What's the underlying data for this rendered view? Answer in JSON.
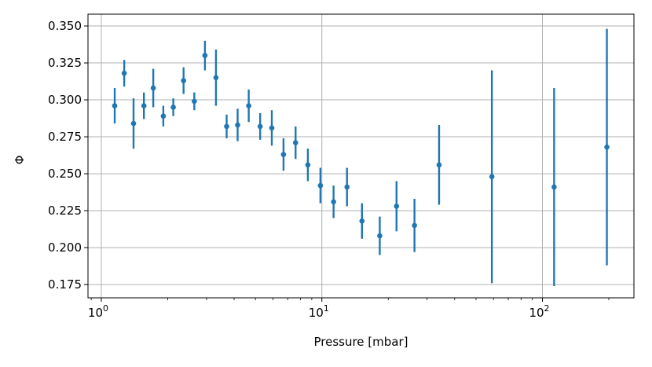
{
  "chart_data": {
    "type": "scatter",
    "xlabel": "Pressure [mbar]",
    "ylabel": "Φ",
    "xscale": "log",
    "xlim": [
      0.87,
      260
    ],
    "ylim": [
      0.166,
      0.358
    ],
    "grid": true,
    "marker_color": "#1f77b4",
    "x_ticks": [
      {
        "value": 1,
        "base": "10",
        "exp": "0"
      },
      {
        "value": 10,
        "base": "10",
        "exp": "1"
      },
      {
        "value": 100,
        "base": "10",
        "exp": "2"
      }
    ],
    "y_ticks": [
      {
        "value": 0.175,
        "label": "0.175"
      },
      {
        "value": 0.2,
        "label": "0.200"
      },
      {
        "value": 0.225,
        "label": "0.225"
      },
      {
        "value": 0.25,
        "label": "0.250"
      },
      {
        "value": 0.275,
        "label": "0.275"
      },
      {
        "value": 0.3,
        "label": "0.300"
      },
      {
        "value": 0.325,
        "label": "0.325"
      },
      {
        "value": 0.35,
        "label": "0.350"
      }
    ],
    "series": [
      {
        "points": [
          {
            "x": 1.15,
            "y": 0.296,
            "yerr": 0.012
          },
          {
            "x": 1.27,
            "y": 0.318,
            "yerr": 0.009
          },
          {
            "x": 1.4,
            "y": 0.284,
            "yerr": 0.017
          },
          {
            "x": 1.56,
            "y": 0.296,
            "yerr": 0.009
          },
          {
            "x": 1.72,
            "y": 0.308,
            "yerr": 0.013
          },
          {
            "x": 1.91,
            "y": 0.289,
            "yerr": 0.007
          },
          {
            "x": 2.12,
            "y": 0.295,
            "yerr": 0.006
          },
          {
            "x": 2.36,
            "y": 0.313,
            "yerr": 0.009
          },
          {
            "x": 2.64,
            "y": 0.299,
            "yerr": 0.006
          },
          {
            "x": 2.95,
            "y": 0.33,
            "yerr": 0.01
          },
          {
            "x": 3.31,
            "y": 0.315,
            "yerr": 0.019
          },
          {
            "x": 3.7,
            "y": 0.282,
            "yerr": 0.008
          },
          {
            "x": 4.15,
            "y": 0.283,
            "yerr": 0.011
          },
          {
            "x": 4.66,
            "y": 0.296,
            "yerr": 0.011
          },
          {
            "x": 5.25,
            "y": 0.282,
            "yerr": 0.009
          },
          {
            "x": 5.93,
            "y": 0.281,
            "yerr": 0.012
          },
          {
            "x": 6.7,
            "y": 0.263,
            "yerr": 0.011
          },
          {
            "x": 7.6,
            "y": 0.271,
            "yerr": 0.011
          },
          {
            "x": 8.64,
            "y": 0.256,
            "yerr": 0.011
          },
          {
            "x": 9.85,
            "y": 0.242,
            "yerr": 0.012
          },
          {
            "x": 11.3,
            "y": 0.231,
            "yerr": 0.011
          },
          {
            "x": 13.0,
            "y": 0.241,
            "yerr": 0.013
          },
          {
            "x": 15.2,
            "y": 0.218,
            "yerr": 0.012
          },
          {
            "x": 18.3,
            "y": 0.208,
            "yerr": 0.013
          },
          {
            "x": 21.8,
            "y": 0.228,
            "yerr": 0.017
          },
          {
            "x": 26.3,
            "y": 0.215,
            "yerr": 0.018
          },
          {
            "x": 34.0,
            "y": 0.256,
            "yerr": 0.027
          },
          {
            "x": 59.0,
            "y": 0.248,
            "yerr": 0.072
          },
          {
            "x": 113,
            "y": 0.241,
            "yerr": 0.067
          },
          {
            "x": 196,
            "y": 0.268,
            "yerr": 0.08
          }
        ]
      }
    ]
  }
}
